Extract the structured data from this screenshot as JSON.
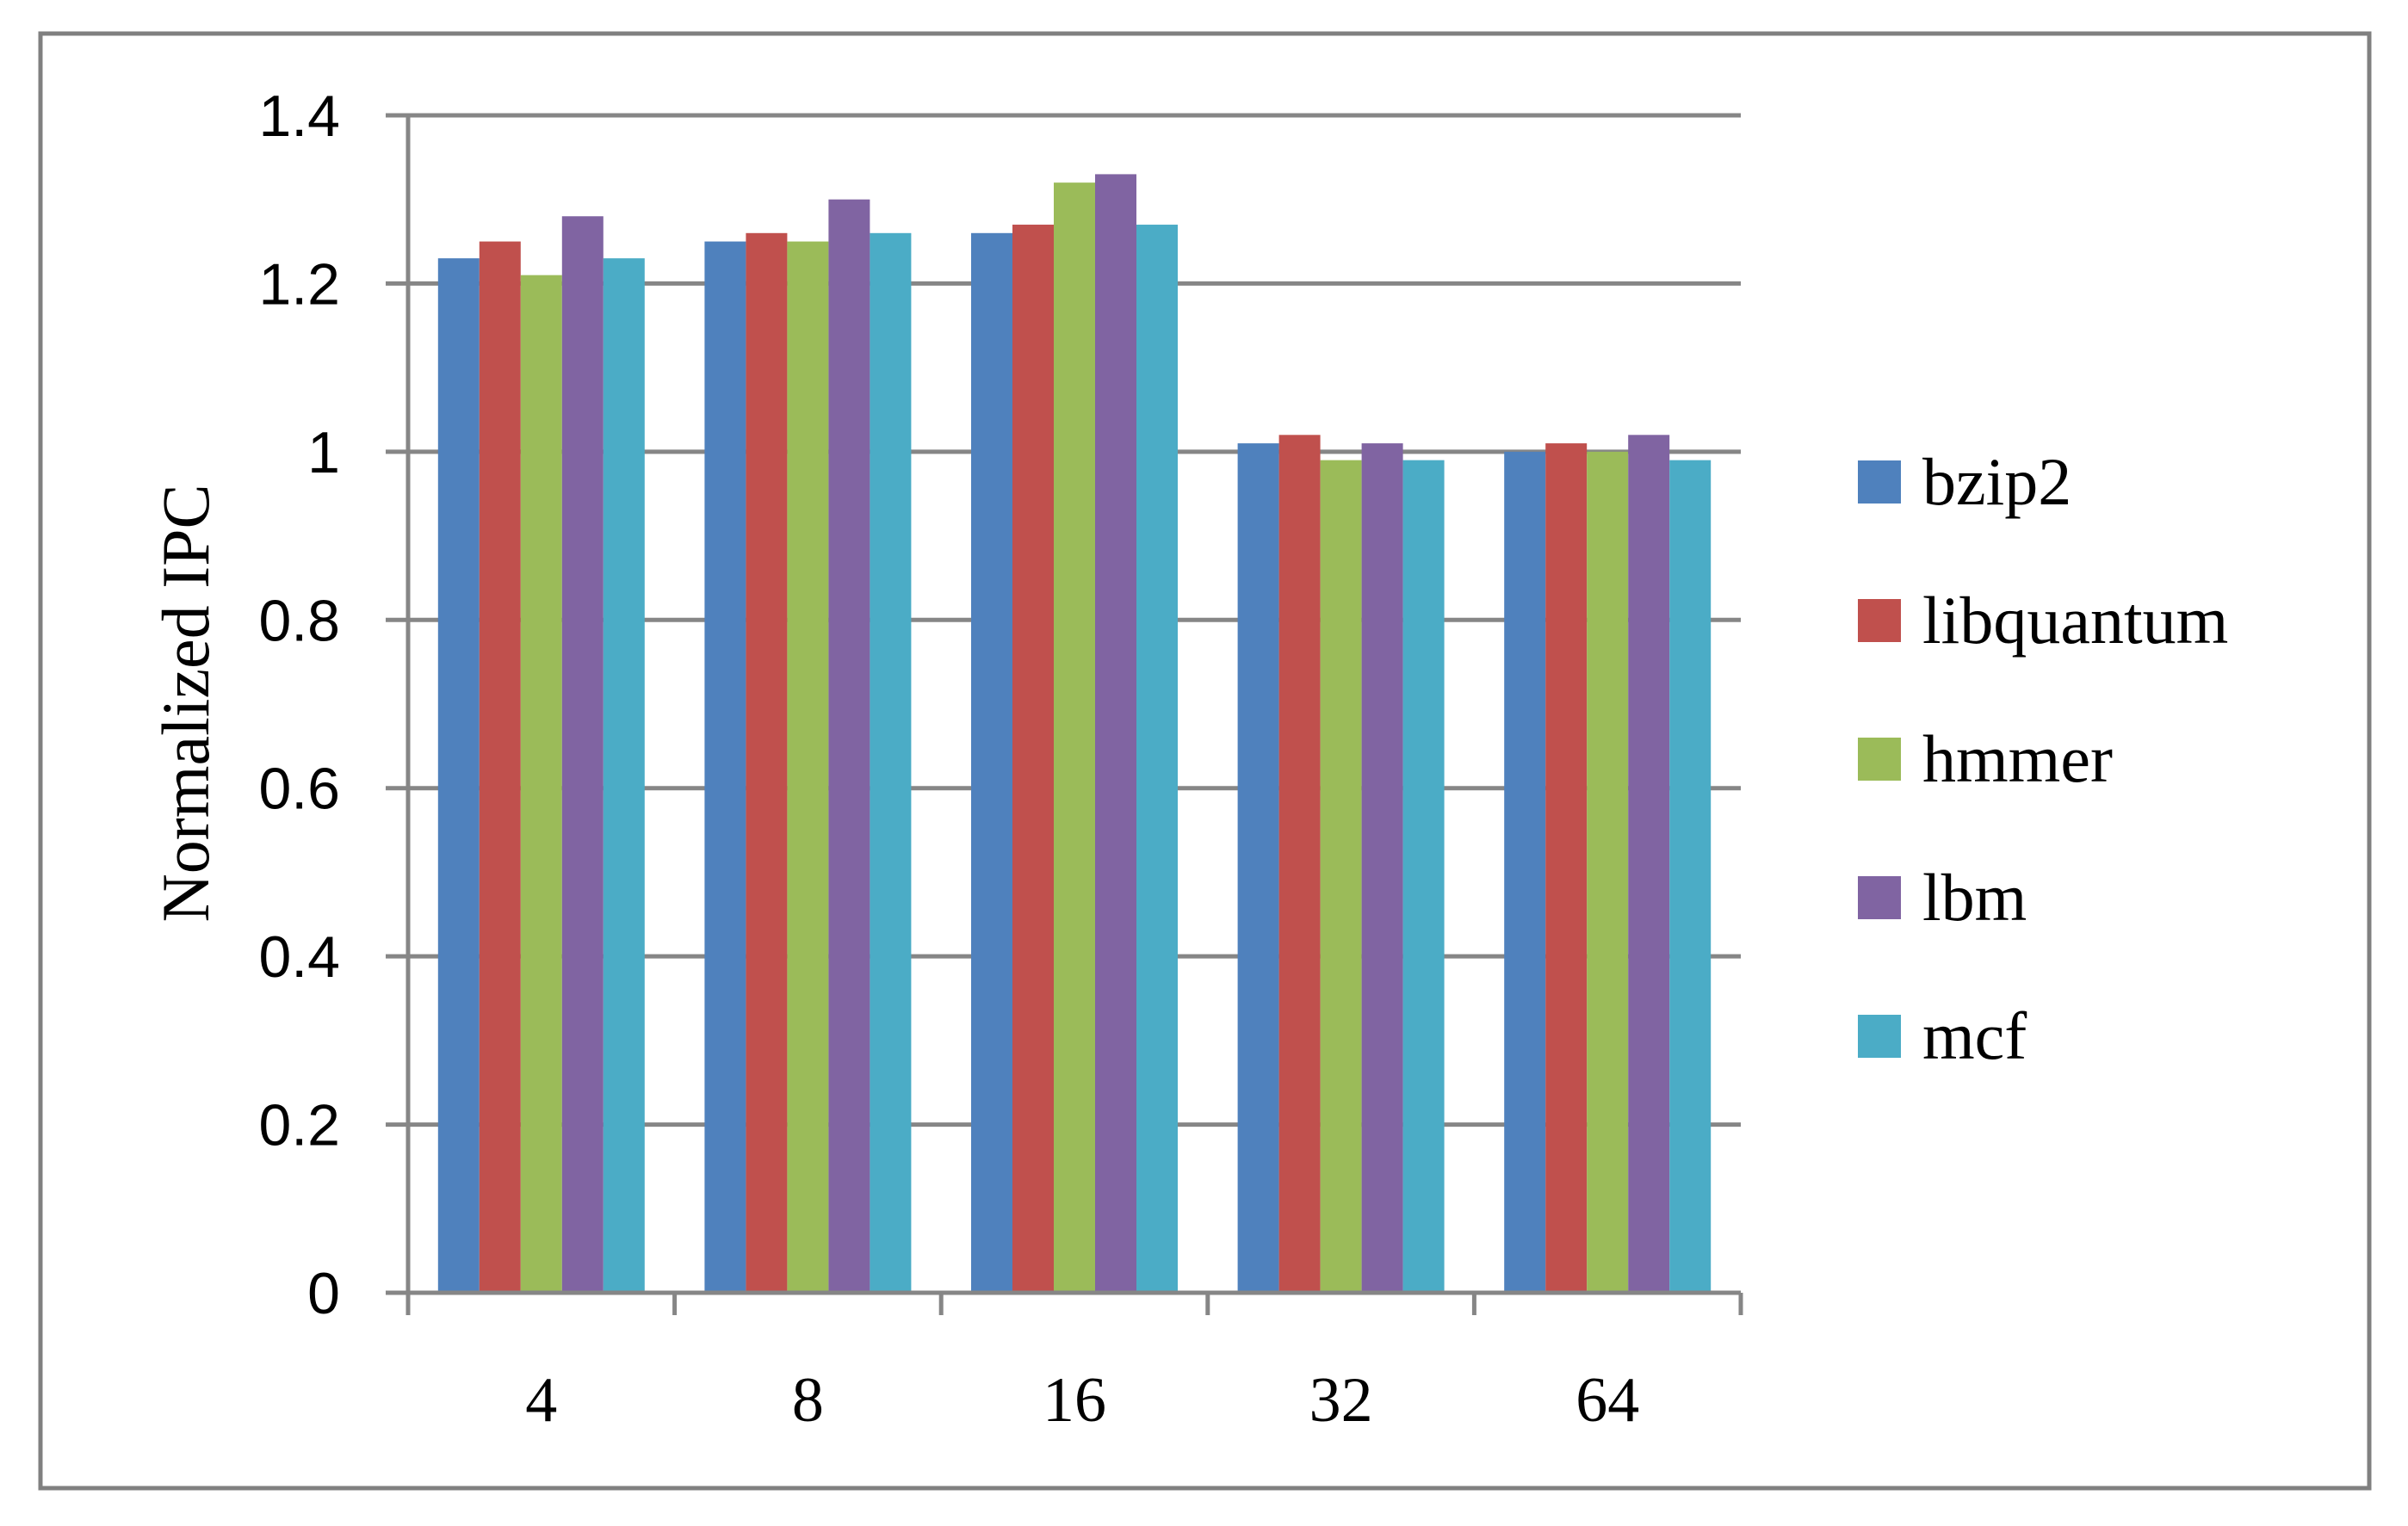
{
  "chart_data": {
    "type": "bar",
    "title": "",
    "xlabel": "",
    "ylabel": "Normalized IPC",
    "ylim": [
      0,
      1.4
    ],
    "yticks": [
      "0",
      "0.2",
      "0.4",
      "0.6",
      "0.8",
      "1",
      "1.2",
      "1.4"
    ],
    "grid": true,
    "legend_position": "right",
    "categories": [
      "4",
      "8",
      "16",
      "32",
      "64"
    ],
    "series": [
      {
        "name": "bzip2",
        "color": "#4F81BD",
        "values": [
          1.23,
          1.25,
          1.26,
          1.01,
          1.0
        ]
      },
      {
        "name": "libquantum",
        "color": "#C0504D",
        "values": [
          1.25,
          1.26,
          1.27,
          1.02,
          1.01
        ]
      },
      {
        "name": "hmmer",
        "color": "#9BBB59",
        "values": [
          1.21,
          1.25,
          1.32,
          0.99,
          1.0
        ]
      },
      {
        "name": "lbm",
        "color": "#8064A2",
        "values": [
          1.28,
          1.3,
          1.33,
          1.01,
          1.02
        ]
      },
      {
        "name": "mcf",
        "color": "#4BACC6",
        "values": [
          1.23,
          1.26,
          1.27,
          0.99,
          0.99
        ]
      }
    ]
  }
}
